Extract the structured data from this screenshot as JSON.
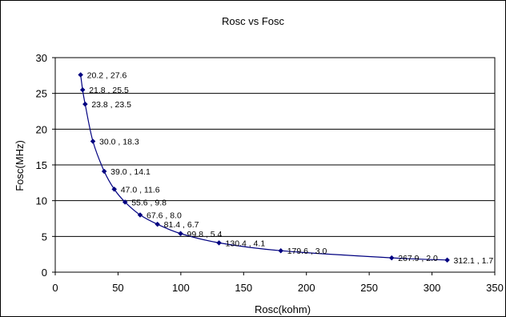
{
  "chart_data": {
    "type": "line",
    "title": "Rosc vs Fosc",
    "xlabel": "Rosc(kohm)",
    "ylabel": "Fosc(MHz)",
    "xlim": [
      0,
      350
    ],
    "ylim": [
      0,
      30
    ],
    "xticks": [
      0,
      50,
      100,
      150,
      200,
      250,
      300,
      350
    ],
    "yticks": [
      0,
      5,
      10,
      15,
      20,
      25,
      30
    ],
    "grid": "horizontal",
    "legend": "none",
    "series": [
      {
        "color": "#000080",
        "points": [
          {
            "x": 20.2,
            "y": 27.6,
            "label": "20.2 , 27.6"
          },
          {
            "x": 21.8,
            "y": 25.5,
            "label": "21.8 , 25.5"
          },
          {
            "x": 23.8,
            "y": 23.5,
            "label": "23.8 , 23.5"
          },
          {
            "x": 30.0,
            "y": 18.3,
            "label": "30.0 , 18.3"
          },
          {
            "x": 39.0,
            "y": 14.1,
            "label": "39.0 , 14.1"
          },
          {
            "x": 47.0,
            "y": 11.6,
            "label": "47.0 , 11.6"
          },
          {
            "x": 55.6,
            "y": 9.8,
            "label": "55.6 , 9.8"
          },
          {
            "x": 67.6,
            "y": 8.0,
            "label": "67.6 , 8.0"
          },
          {
            "x": 81.4,
            "y": 6.7,
            "label": "81.4 , 6.7"
          },
          {
            "x": 99.8,
            "y": 5.4,
            "label": "99.8 , 5.4"
          },
          {
            "x": 130.4,
            "y": 4.1,
            "label": "130.4 , 4.1"
          },
          {
            "x": 179.6,
            "y": 3.0,
            "label": "179.6 , 3.0"
          },
          {
            "x": 267.9,
            "y": 2.0,
            "label": "267.9 , 2.0"
          },
          {
            "x": 312.1,
            "y": 1.7,
            "label": "312.1 , 1.7"
          }
        ]
      }
    ]
  }
}
